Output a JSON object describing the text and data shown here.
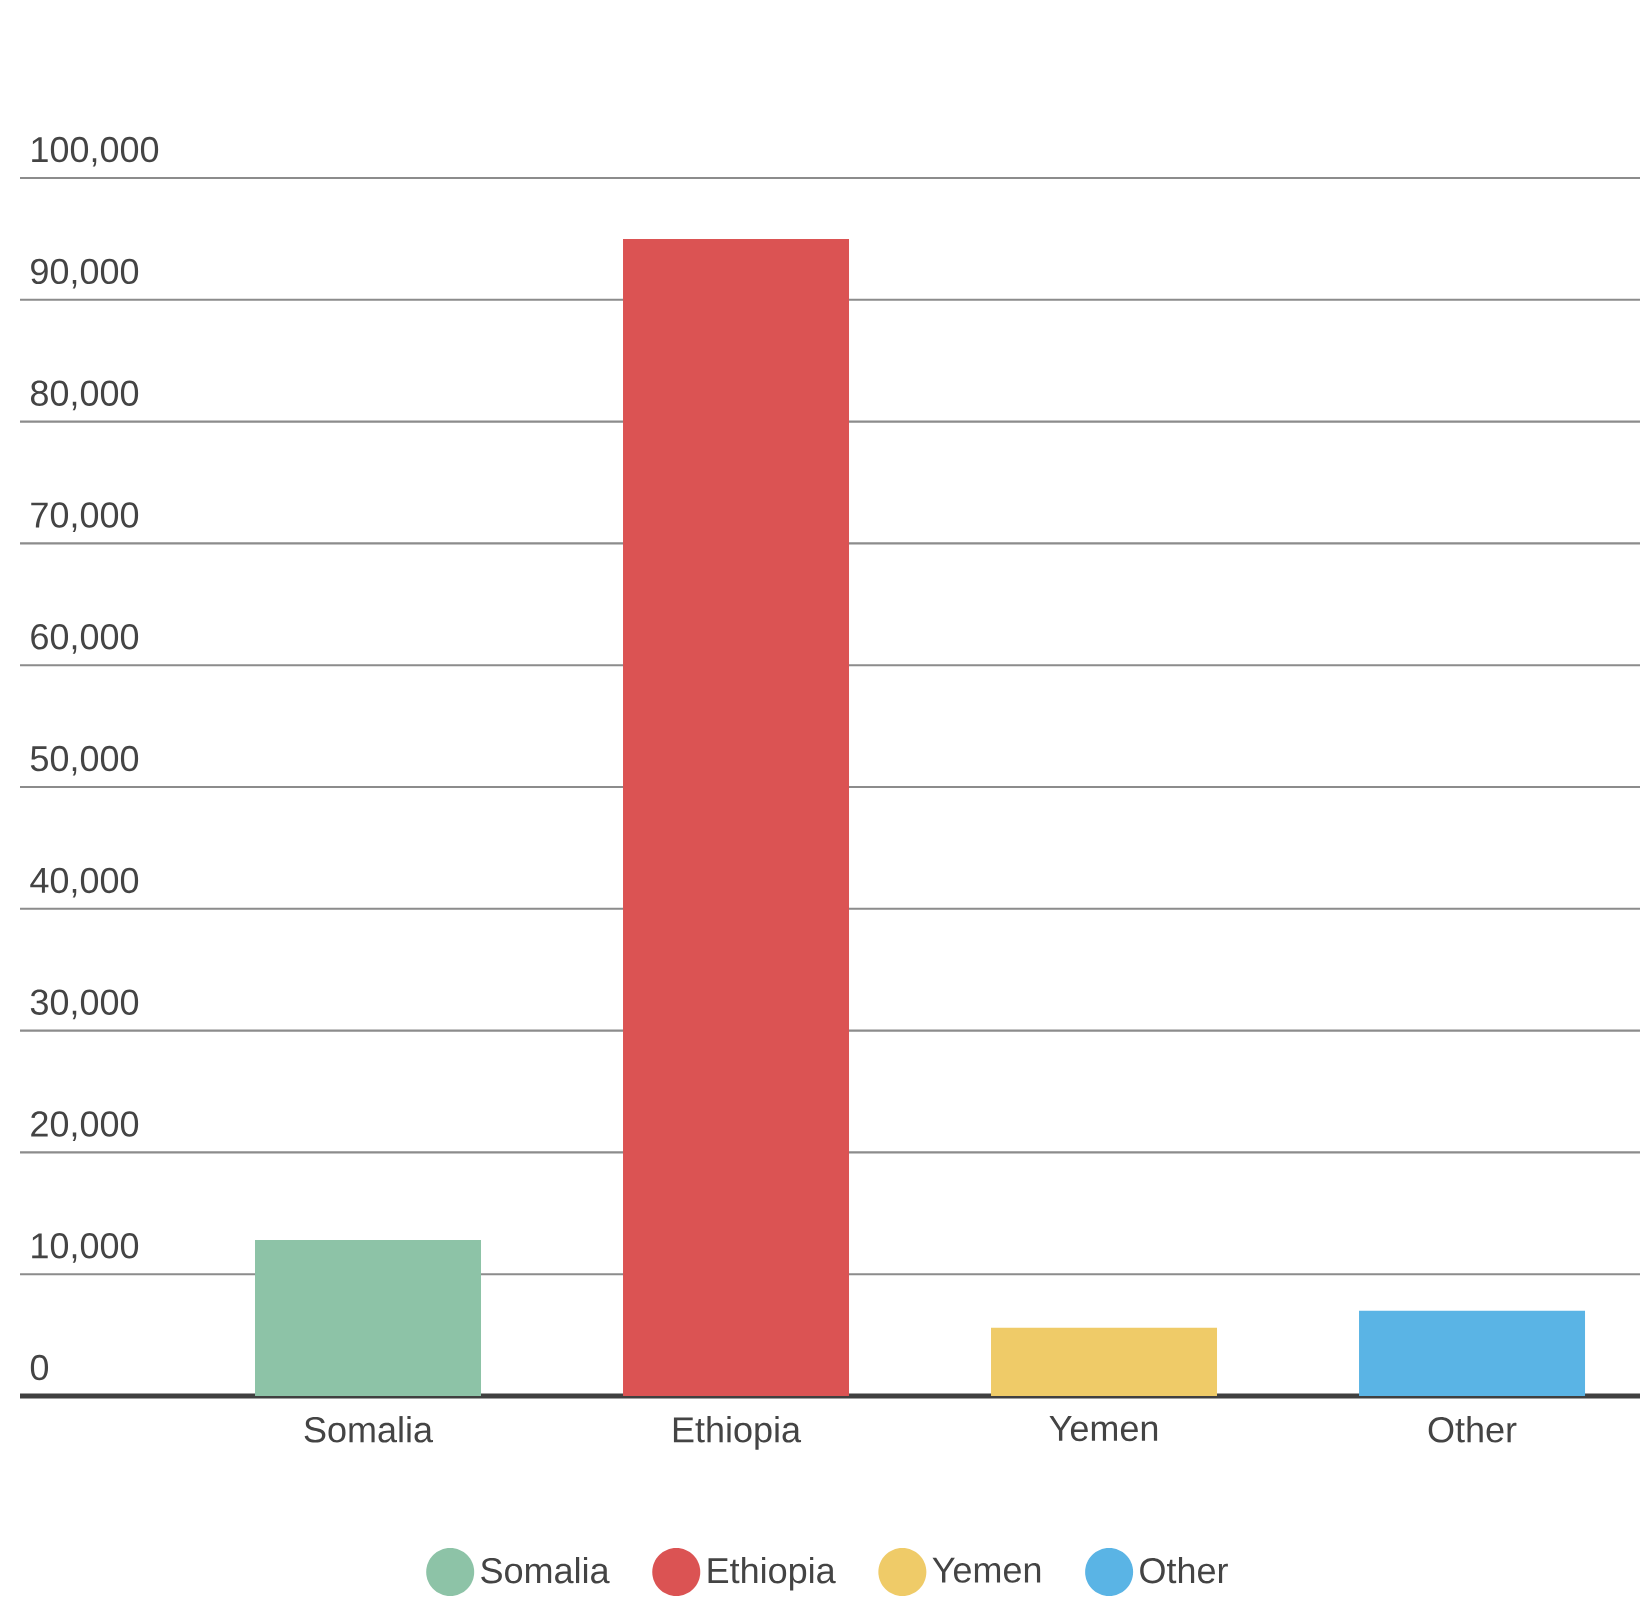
{
  "chart_data": {
    "type": "bar",
    "categories": [
      "Somalia",
      "Ethiopia",
      "Yemen",
      "Other"
    ],
    "series": [
      {
        "name": "Somalia",
        "color": "#8dc3a7",
        "values": [
          12800,
          null,
          null,
          null
        ]
      },
      {
        "name": "Ethiopia",
        "color": "#db5353",
        "values": [
          null,
          95000,
          null,
          null
        ]
      },
      {
        "name": "Yemen",
        "color": "#efcb68",
        "values": [
          null,
          null,
          5600,
          null
        ]
      },
      {
        "name": "Other",
        "color": "#5ab4e5",
        "values": [
          null,
          null,
          null,
          7000
        ]
      }
    ],
    "ylim": [
      0,
      100000
    ],
    "yticks": [
      0,
      {
        "value": 10000,
        "label": "10,000"
      },
      {
        "value": 20000,
        "label": "20,000"
      },
      {
        "value": 30000,
        "label": "30,000"
      },
      {
        "value": 40000,
        "label": "40,000"
      },
      {
        "value": 50000,
        "label": "50,000"
      },
      {
        "value": 60000,
        "label": "60,000"
      },
      {
        "value": 70000,
        "label": "70,000"
      },
      {
        "value": 80000,
        "label": "80,000"
      },
      {
        "value": 90000,
        "label": "90,000"
      },
      {
        "value": 100000,
        "label": "100,000"
      }
    ],
    "grid": "y",
    "legend": "bottom"
  }
}
